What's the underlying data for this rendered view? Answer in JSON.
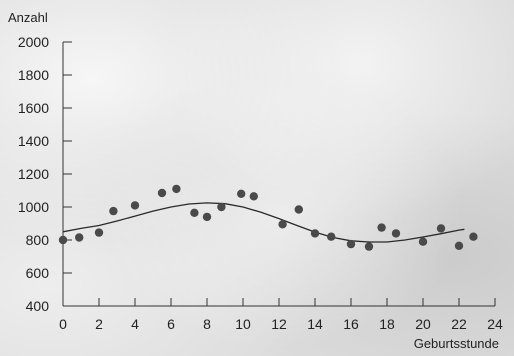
{
  "chart_data": {
    "type": "scatter",
    "title": "",
    "ylabel": "Anzahl",
    "xlabel": "Geburtsstunde",
    "xlim": [
      0,
      24
    ],
    "ylim": [
      400,
      2000
    ],
    "x_ticks": [
      0,
      2,
      4,
      6,
      8,
      10,
      12,
      14,
      16,
      18,
      20,
      22,
      24
    ],
    "y_ticks": [
      400,
      600,
      800,
      1000,
      1200,
      1400,
      1600,
      1800,
      2000
    ],
    "grid": false,
    "legend": "none",
    "colors": {
      "marker": "#4a4a4a",
      "line": "#2a2a2a",
      "axis": "#333333"
    },
    "series": [
      {
        "type": "scatter",
        "x": [
          0,
          0.9,
          2,
          2.8,
          4,
          5.5,
          6.3,
          7.3,
          8,
          8.8,
          9.9,
          10.6,
          12.2,
          13.1,
          14,
          14.9,
          16,
          17,
          17.7,
          18.5,
          20,
          21,
          22,
          22.8
        ],
        "y": [
          800,
          815,
          845,
          975,
          1010,
          1085,
          1110,
          965,
          940,
          1000,
          1080,
          1065,
          895,
          985,
          840,
          820,
          775,
          760,
          875,
          840,
          790,
          870,
          765,
          820
        ]
      },
      {
        "type": "line",
        "x": [
          0,
          1,
          2,
          3,
          4,
          5,
          6,
          7,
          8,
          9,
          10,
          11,
          12,
          13,
          14,
          15,
          16,
          17,
          18,
          19,
          20,
          21,
          22,
          22.3
        ],
        "y": [
          850,
          870,
          888,
          915,
          945,
          975,
          1000,
          1018,
          1025,
          1020,
          1000,
          968,
          930,
          888,
          848,
          815,
          795,
          788,
          788,
          800,
          818,
          838,
          860,
          865
        ]
      }
    ]
  }
}
